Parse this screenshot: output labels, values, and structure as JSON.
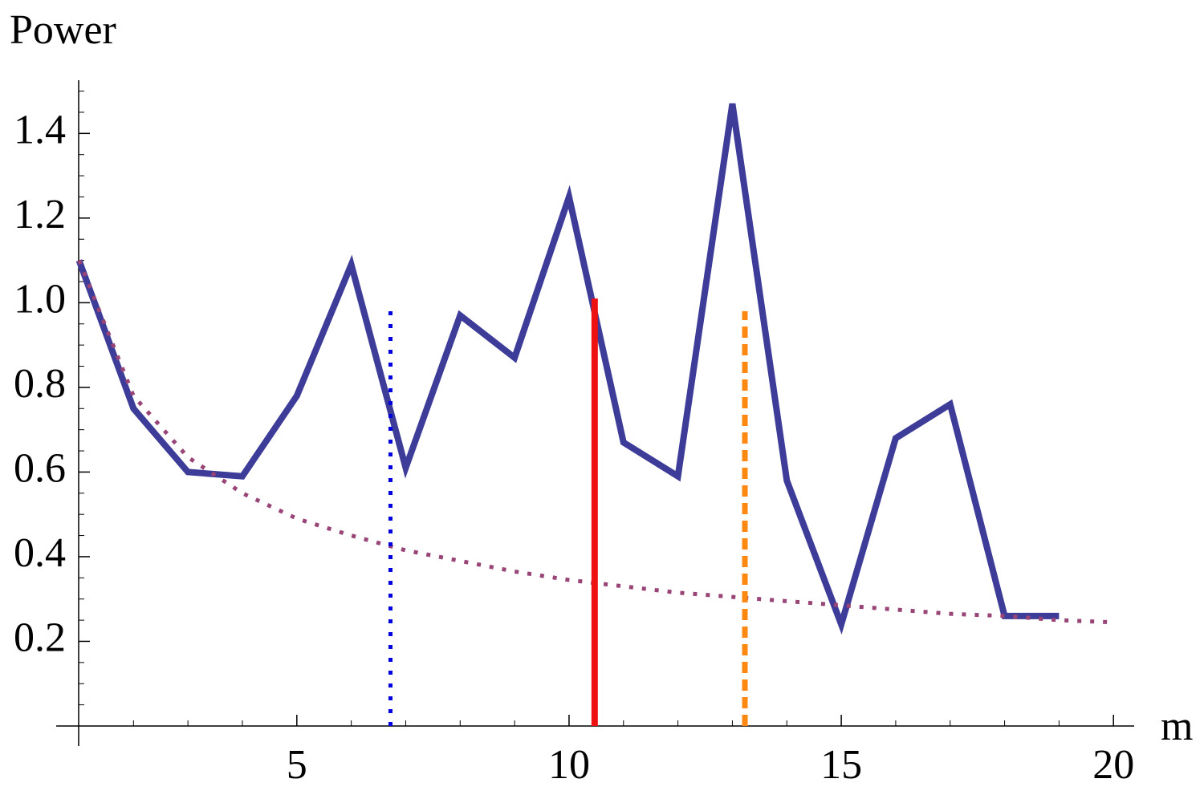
{
  "chart_data": {
    "type": "line",
    "y_label": "Power",
    "x_label": "m",
    "xlim": [
      0.58,
      20.38
    ],
    "ylim": [
      0,
      1.52
    ],
    "xticks": [
      5,
      10,
      15,
      20
    ],
    "xminorticks": [
      2,
      3,
      4,
      6,
      7,
      8,
      9,
      11,
      12,
      13,
      14,
      16,
      17,
      18,
      19
    ],
    "yticks": [
      0.2,
      0.4,
      0.6,
      0.8,
      {
        "value": 1,
        "label": "1.0"
      },
      1.2,
      1.4
    ],
    "yminorticks": [
      0.05,
      0.1,
      0.15,
      0.25,
      0.3,
      0.35,
      0.45,
      0.5,
      0.55,
      0.65,
      0.7,
      0.75,
      0.85,
      0.9,
      0.95,
      1.05,
      1.1,
      1.15,
      1.25,
      1.3,
      1.35,
      1.45,
      1.5
    ],
    "series": [
      {
        "color": "#3d3d99",
        "width": 8,
        "dash": "solid",
        "x": [
          1,
          2,
          3,
          4,
          5,
          6,
          7,
          8,
          9,
          10,
          11,
          12,
          13,
          14,
          15,
          16,
          17,
          18,
          19
        ],
        "values": [
          1.1,
          0.75,
          0.6,
          0.59,
          0.78,
          1.09,
          0.61,
          0.97,
          0.87,
          1.25,
          0.67,
          0.59,
          1.47,
          0.58,
          0.24,
          0.68,
          0.76,
          0.26,
          0.26
        ]
      },
      {
        "color": "#994477",
        "width": 5,
        "dash": "dotted",
        "x": [
          1,
          2,
          3,
          4,
          5,
          6,
          7,
          8,
          9,
          10,
          11,
          12,
          13,
          14,
          15,
          16,
          17,
          18,
          19,
          20
        ],
        "values": [
          1.1,
          0.78,
          0.635,
          0.55,
          0.49,
          0.45,
          0.415,
          0.39,
          0.365,
          0.345,
          0.33,
          0.315,
          0.305,
          0.295,
          0.285,
          0.275,
          0.265,
          0.26,
          0.25,
          0.245
        ]
      },
      {
        "color": "#0000dd",
        "width": 5,
        "dash": "dotted",
        "x": [
          6.72,
          6.72
        ],
        "values": [
          0,
          1.0
        ]
      },
      {
        "color": "#ee1111",
        "width": 8,
        "dash": "solid",
        "x": [
          10.47,
          10.47
        ],
        "values": [
          0,
          1.01
        ]
      },
      {
        "color": "#ff8811",
        "width": 7,
        "dash": "dashed",
        "x": [
          13.23,
          13.23
        ],
        "values": [
          0,
          0.98
        ]
      }
    ]
  }
}
